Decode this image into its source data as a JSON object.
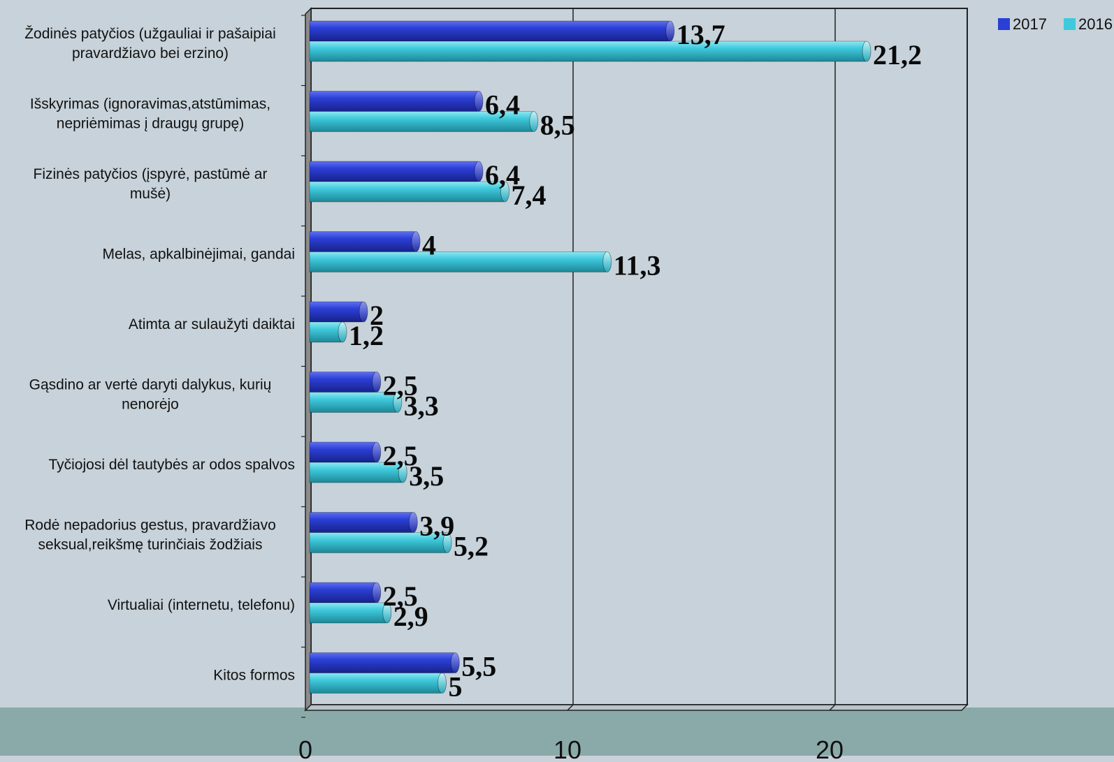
{
  "chart_data": {
    "type": "bar",
    "orientation": "horizontal",
    "categories": [
      [
        "Žodinės patyčios (užgauliai ir pašaipiai",
        "pravardžiavo bei erzino)"
      ],
      [
        "Išskyrimas (ignoravimas,atstūmimas,",
        "nepriėmimas į draugų grupę)"
      ],
      [
        "Fizinės patyčios (įspyrė, pastūmė ar",
        "mušė)"
      ],
      [
        "Melas, apkalbinėjimai, gandai"
      ],
      [
        "Atimta ar sulaužyti daiktai"
      ],
      [
        "Gąsdino ar vertė daryti dalykus, kurių",
        "nenorėjo"
      ],
      [
        "Tyčiojosi dėl tautybės ar odos spalvos"
      ],
      [
        "Rodė nepadorius gestus, pravardžiavo",
        "seksual,reikšmę turinčiais žodžiais"
      ],
      [
        "Virtualiai (internetu, telefonu)"
      ],
      [
        "Kitos formos"
      ]
    ],
    "series": [
      {
        "name": "2017",
        "color": "#2b3fd6",
        "values": [
          13.7,
          6.4,
          6.4,
          4,
          2,
          2.5,
          2.5,
          3.9,
          2.5,
          5.5
        ],
        "labels": [
          "13,7",
          "6,4",
          "6,4",
          "4",
          "2",
          "2,5",
          "2,5",
          "3,9",
          "2,5",
          "5,5"
        ]
      },
      {
        "name": "2016",
        "color": "#3fc9dc",
        "values": [
          21.2,
          8.5,
          7.4,
          11.3,
          1.2,
          3.3,
          3.5,
          5.2,
          2.9,
          5
        ],
        "labels": [
          "21,2",
          "8,5",
          "7,4",
          "11,3",
          "1,2",
          "3,3",
          "3,5",
          "5,2",
          "2,9",
          "5"
        ]
      }
    ],
    "xaxis": {
      "min": 0,
      "max": 25,
      "ticks": [
        0,
        10,
        20
      ],
      "tick_labels": [
        "0",
        "10",
        "20"
      ]
    },
    "grid": true,
    "legend_position": "top-right"
  }
}
